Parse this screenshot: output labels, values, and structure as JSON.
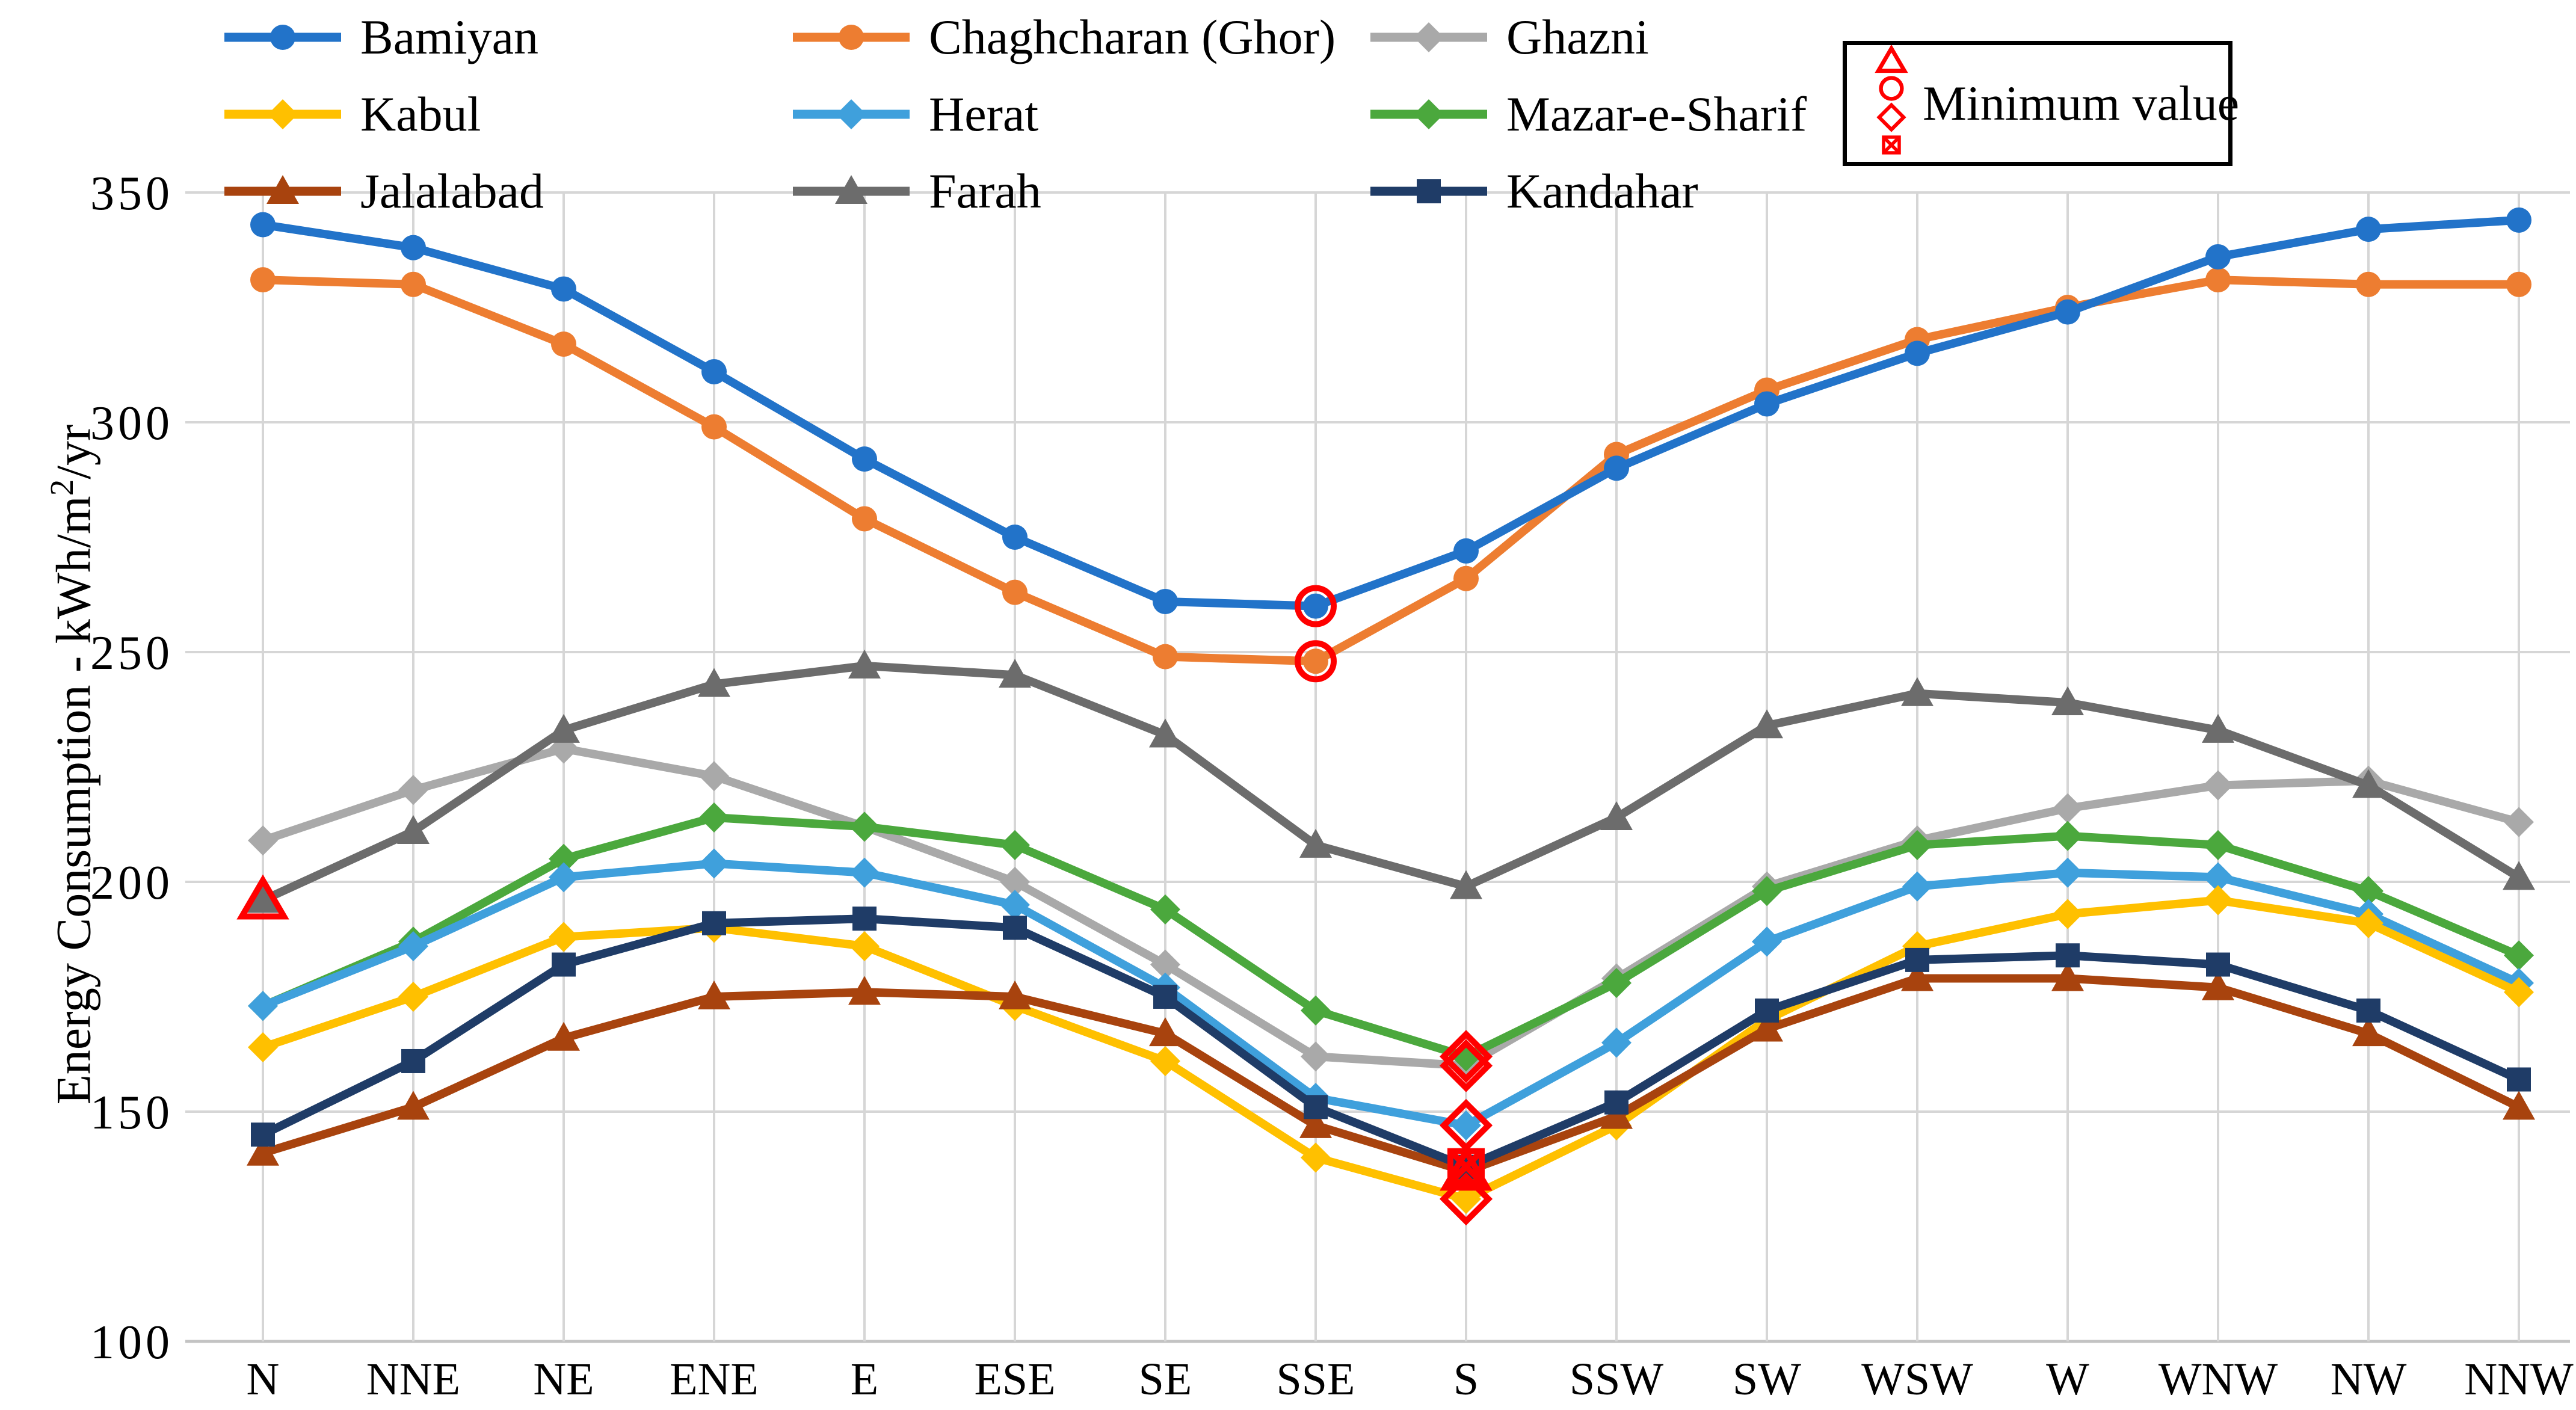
{
  "chart_data": {
    "type": "line",
    "title": "",
    "ylabel_parts": {
      "main": "Energy Consumption - kWh/m",
      "sup": "2",
      "suffix": "/yr"
    },
    "xlabel": "",
    "x_categories": [
      "N",
      "NNE",
      "NE",
      "ENE",
      "E",
      "ESE",
      "SE",
      "SSE",
      "S",
      "SSW",
      "SW",
      "WSW",
      "W",
      "WNW",
      "NW",
      "NNW"
    ],
    "y_ticks": [
      350,
      300,
      250,
      200,
      150,
      100
    ],
    "ylim": [
      100,
      350
    ],
    "grid": true,
    "legend_position": "top",
    "grid_color": "#D6D6D6",
    "axis_text_color": "#000000",
    "series": [
      {
        "name": "Bamiyan",
        "color": "#2273C9",
        "marker": "circle",
        "min_index": 7,
        "values": [
          343,
          338,
          329,
          311,
          292,
          275,
          261,
          260,
          272,
          290,
          304,
          315,
          324,
          336,
          342,
          344
        ]
      },
      {
        "name": "Chaghcharan (Ghor)",
        "color": "#ED7D31",
        "marker": "circle",
        "min_index": 7,
        "values": [
          331,
          330,
          317,
          299,
          279,
          263,
          249,
          248,
          266,
          293,
          307,
          318,
          325,
          331,
          330,
          330
        ]
      },
      {
        "name": "Ghazni",
        "color": "#A9A9A9",
        "marker": "diamond",
        "min_index": 8,
        "values": [
          209,
          220,
          229,
          223,
          212,
          200,
          182,
          162,
          160,
          179,
          199,
          209,
          216,
          221,
          222,
          213
        ]
      },
      {
        "name": "Kabul",
        "color": "#FFC000",
        "marker": "diamond",
        "min_index": 8,
        "values": [
          164,
          175,
          188,
          190,
          186,
          173,
          161,
          140,
          131,
          147,
          170,
          186,
          193,
          196,
          191,
          176
        ]
      },
      {
        "name": "Herat",
        "color": "#3FA0DC",
        "marker": "diamond",
        "min_index": 8,
        "values": [
          173,
          186,
          201,
          204,
          202,
          195,
          177,
          153,
          147,
          165,
          187,
          199,
          202,
          201,
          193,
          178
        ]
      },
      {
        "name": "Mazar-e-Sharif",
        "color": "#4BA83D",
        "marker": "diamond",
        "min_index": 8,
        "values": [
          173,
          187,
          205,
          214,
          212,
          208,
          194,
          172,
          162,
          178,
          198,
          208,
          210,
          208,
          198,
          184
        ]
      },
      {
        "name": "Jalalabad",
        "color": "#A8430E",
        "marker": "triangle",
        "min_index": 8,
        "values": [
          141,
          151,
          166,
          175,
          176,
          175,
          167,
          147,
          137,
          149,
          168,
          179,
          179,
          177,
          167,
          151
        ]
      },
      {
        "name": "Farah",
        "color": "#6C6C6C",
        "marker": "triangle",
        "min_index": 0,
        "values": [
          196,
          211,
          233,
          243,
          247,
          245,
          232,
          208,
          199,
          214,
          234,
          241,
          239,
          233,
          221,
          201
        ]
      },
      {
        "name": "Kandahar",
        "color": "#1F3C67",
        "marker": "square",
        "min_index": 8,
        "values": [
          145,
          161,
          182,
          191,
          192,
          190,
          175,
          151,
          138,
          152,
          172,
          183,
          184,
          182,
          172,
          157
        ]
      }
    ],
    "minimum_legend": {
      "label": "Minimum value",
      "color": "#FF0000",
      "shapes": [
        "triangle",
        "circle",
        "diamond",
        "boxed-x"
      ]
    }
  }
}
